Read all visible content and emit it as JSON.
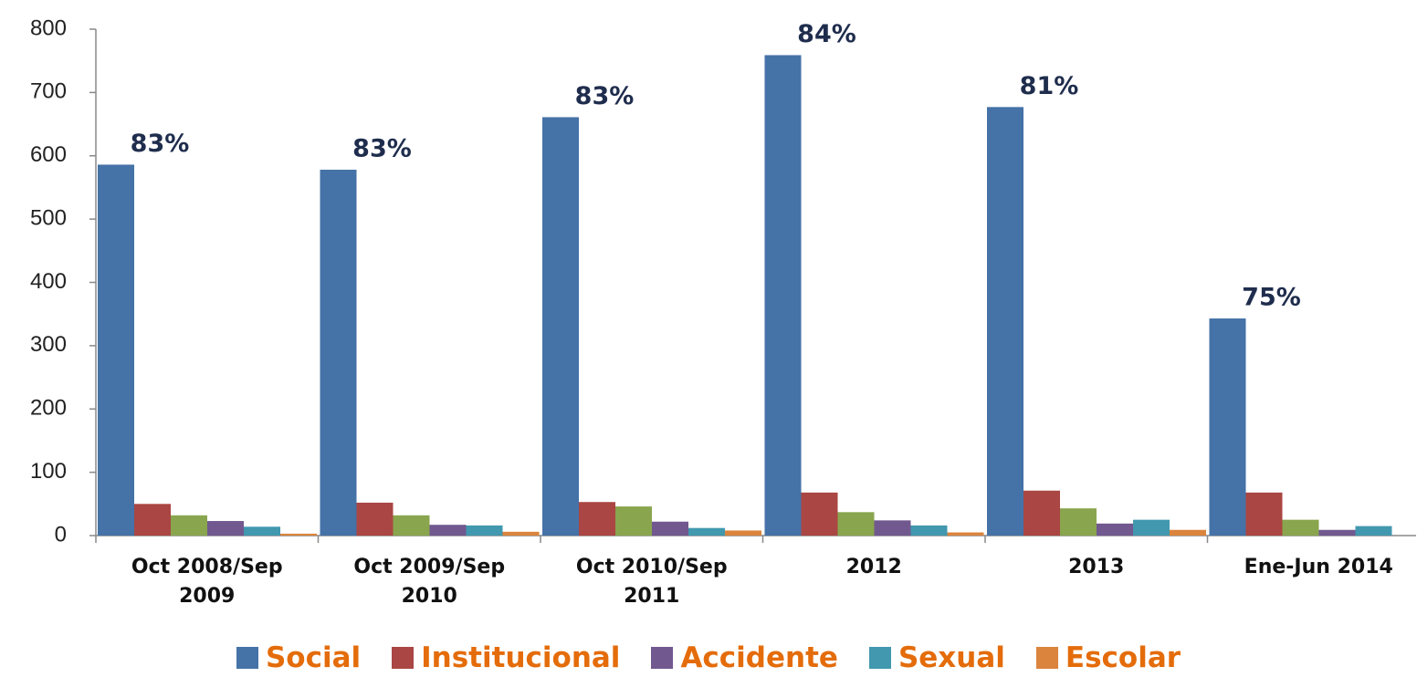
{
  "chart_data": {
    "type": "bar",
    "categories": [
      "Oct 2008/Sep 2009",
      "Oct 2009/Sep 2010",
      "Oct 2010/Sep 2011",
      "2012",
      "2013",
      "Ene-Jun 2014"
    ],
    "series": [
      {
        "name": "Social",
        "color": "#4572a7",
        "values": [
          586,
          578,
          661,
          759,
          677,
          343
        ]
      },
      {
        "name": "Institucional",
        "color": "#aa4643",
        "values": [
          50,
          52,
          53,
          68,
          71,
          68
        ]
      },
      {
        "color": "#89a54e",
        "values": [
          32,
          32,
          46,
          37,
          43,
          25
        ]
      },
      {
        "name": "Accidente",
        "color": "#71588f",
        "values": [
          23,
          17,
          22,
          24,
          19,
          9
        ]
      },
      {
        "name": "Sexual",
        "color": "#4198af",
        "values": [
          14,
          16,
          12,
          16,
          25,
          15
        ]
      },
      {
        "name": "Escolar",
        "color": "#db843d",
        "values": [
          3,
          6,
          8,
          5,
          9,
          0
        ]
      }
    ],
    "annotations": [
      "83%",
      "83%",
      "83%",
      "84%",
      "81%",
      "75%"
    ],
    "ylim": [
      0,
      800
    ],
    "yticks": [
      0,
      100,
      200,
      300,
      400,
      500,
      600,
      700,
      800
    ]
  }
}
